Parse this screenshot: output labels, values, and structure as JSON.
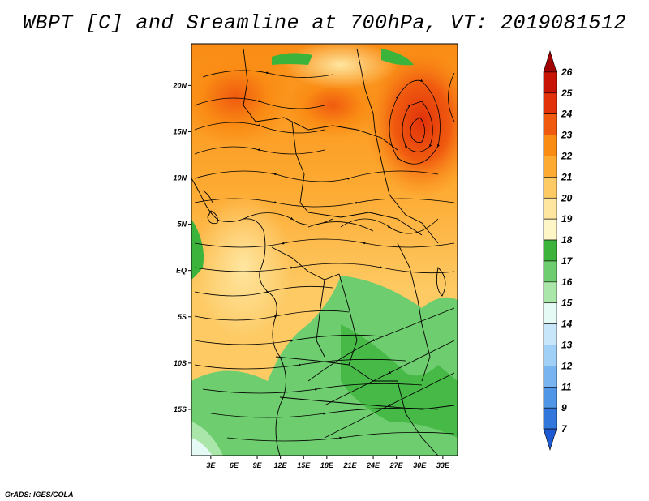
{
  "title": "WBPT [C] and Sreamline at 700hPa, VT: 2019081512",
  "footer": "GrADS: IGES/COLA",
  "map": {
    "lat_ticks": [
      {
        "value": 20,
        "label": "20N"
      },
      {
        "value": 15,
        "label": "15N"
      },
      {
        "value": 10,
        "label": "10N"
      },
      {
        "value": 5,
        "label": "5N"
      },
      {
        "value": 0,
        "label": "EQ"
      },
      {
        "value": -5,
        "label": "5S"
      },
      {
        "value": -10,
        "label": "10S"
      },
      {
        "value": -15,
        "label": "15S"
      }
    ],
    "lon_ticks": [
      {
        "value": 3,
        "label": "3E"
      },
      {
        "value": 6,
        "label": "6E"
      },
      {
        "value": 9,
        "label": "9E"
      },
      {
        "value": 12,
        "label": "12E"
      },
      {
        "value": 15,
        "label": "15E"
      },
      {
        "value": 18,
        "label": "18E"
      },
      {
        "value": 21,
        "label": "21E"
      },
      {
        "value": 24,
        "label": "24E"
      },
      {
        "value": 27,
        "label": "27E"
      },
      {
        "value": 30,
        "label": "30E"
      },
      {
        "value": 33,
        "label": "33E"
      }
    ],
    "lon_range": [
      0.5,
      34.9
    ],
    "lat_range": [
      -20.0,
      24.5
    ]
  },
  "colorbar": {
    "levels": [
      "26",
      "25",
      "24",
      "23",
      "22",
      "21",
      "20",
      "19",
      "18",
      "17",
      "16",
      "15",
      "14",
      "13",
      "12",
      "11",
      "9",
      "7"
    ],
    "colors": [
      "#a00000",
      "#c81405",
      "#e1320a",
      "#f05a0f",
      "#fa8c14",
      "#fdaa32",
      "#fdca64",
      "#fee6a0",
      "#fff6c8",
      "#3cb43c",
      "#6ecd6e",
      "#aae6aa",
      "#e6faf5",
      "#c8e6fa",
      "#a0d0f5",
      "#78b4f0",
      "#5096e6",
      "#3278dc",
      "#1e5ad2"
    ]
  }
}
